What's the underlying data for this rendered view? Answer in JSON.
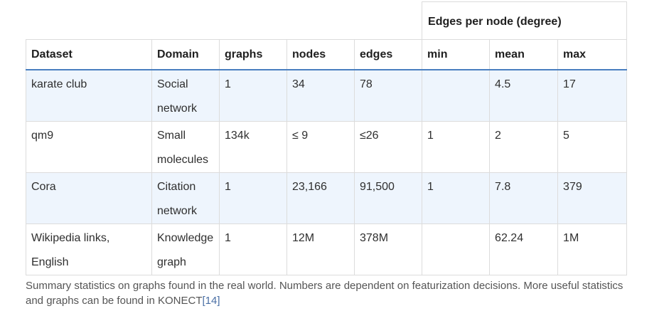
{
  "table": {
    "group_header": "Edges per node (degree)",
    "columns": [
      "Dataset",
      "Domain",
      "graphs",
      "nodes",
      "edges",
      "min",
      "mean",
      "max"
    ],
    "rows": [
      [
        "karate club",
        "Social network",
        "1",
        "34",
        "78",
        "",
        "4.5",
        "17"
      ],
      [
        "qm9",
        "Small molecules",
        "134k",
        "≤ 9",
        "≤26",
        "1",
        "2",
        "5"
      ],
      [
        "Cora",
        "Citation network",
        "1",
        "23,166",
        "91,500",
        "1",
        "7.8",
        "379"
      ],
      [
        "Wikipedia links, English",
        "Knowledge graph",
        "1",
        "12M",
        "378M",
        "",
        "62.24",
        "1M"
      ]
    ]
  },
  "caption": {
    "text": "Summary statistics on graphs found in the real world. Numbers are dependent on featurization decisions. More useful statistics and graphs can be found in KONECT",
    "reference": "[14]"
  },
  "colors": {
    "header_underline": "#4a7fc0",
    "shaded_row": "#eef5fd",
    "border": "#dcdcdc"
  }
}
